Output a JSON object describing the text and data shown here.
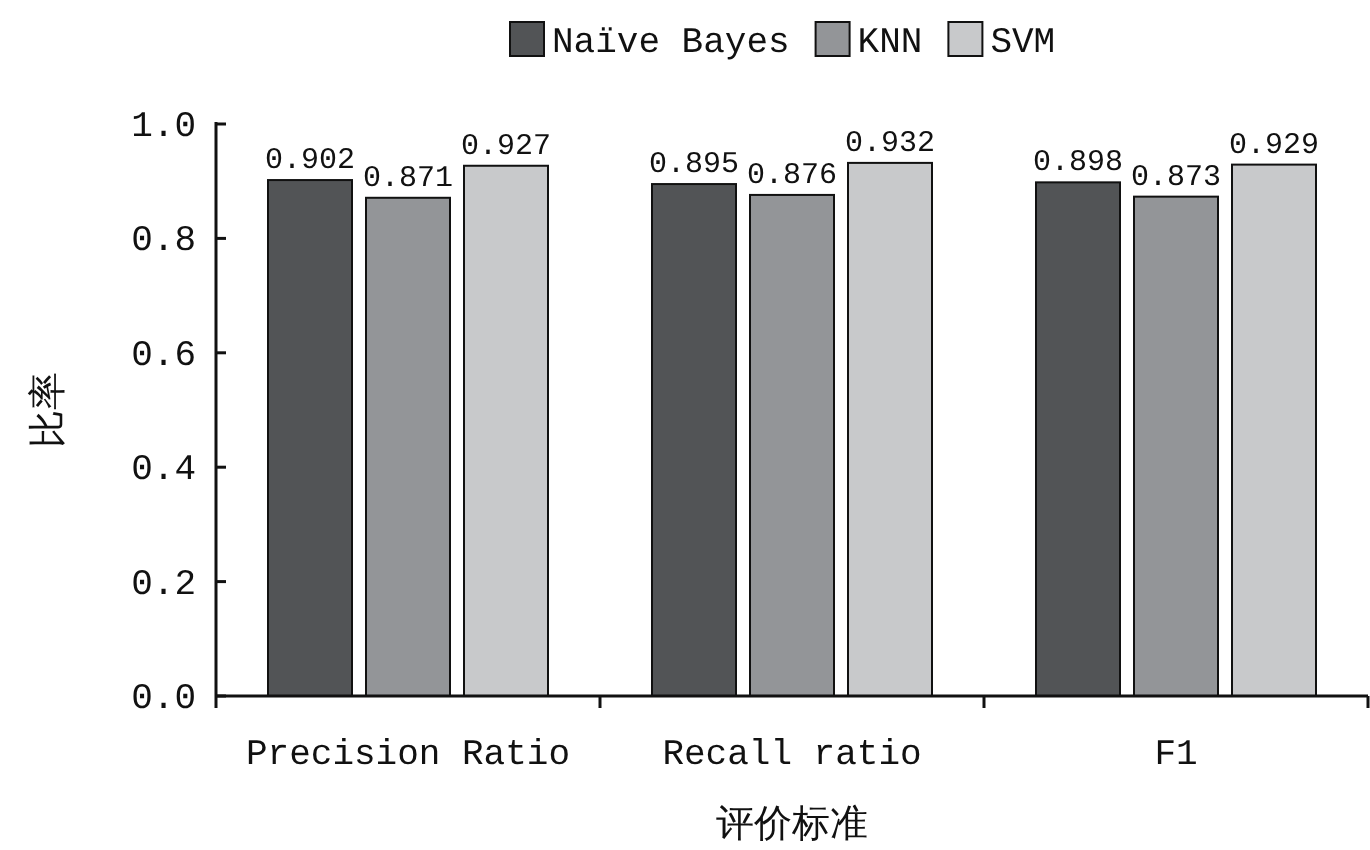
{
  "chart_data": {
    "type": "bar",
    "xlabel": "评价标准",
    "ylabel": "比率",
    "categories": [
      "Precision Ratio",
      "Recall ratio",
      "F1"
    ],
    "series": [
      {
        "name": "Naïve Bayes",
        "color": "#525456",
        "values": [
          0.902,
          0.895,
          0.898
        ]
      },
      {
        "name": "KNN",
        "color": "#939598",
        "values": [
          0.871,
          0.876,
          0.873
        ]
      },
      {
        "name": "SVM",
        "color": "#c8c9cb",
        "values": [
          0.927,
          0.932,
          0.929
        ]
      }
    ],
    "ylim": [
      0,
      1
    ],
    "yticks": [
      {
        "value": 0,
        "label": "0.0"
      },
      {
        "value": 0.2,
        "label": "0.2"
      },
      {
        "value": 0.4,
        "label": "0.4"
      },
      {
        "value": 0.6,
        "label": "0.6"
      },
      {
        "value": 0.8,
        "label": "0.8"
      },
      {
        "value": 1,
        "label": "1.0"
      }
    ],
    "data_labels": true,
    "legend": "top",
    "grid": false
  }
}
